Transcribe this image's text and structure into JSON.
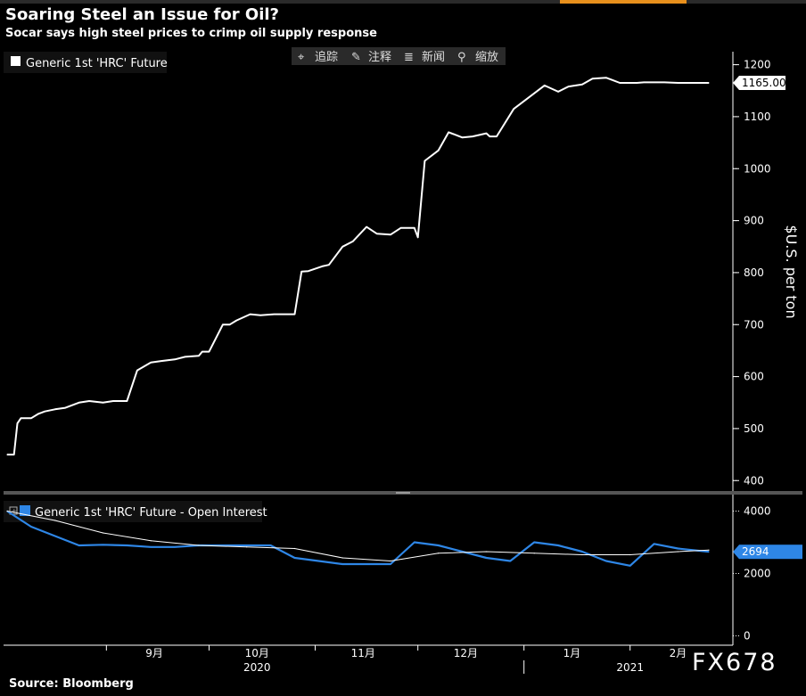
{
  "title": "Soaring Steel an Issue for Oil?",
  "subtitle": "Socar says high steel prices to crimp oil supply response",
  "source": "Source: Bloomberg",
  "watermark": "FX678",
  "toolbar": {
    "items": [
      "追踪",
      "注释",
      "新闻",
      "缩放"
    ],
    "icons": [
      "crosshair-icon",
      "pencil-icon",
      "news-icon",
      "zoom-icon"
    ]
  },
  "colors": {
    "price": "#ffffff",
    "open_interest": "#2e86e6",
    "open_interest_avg": "#ffffff",
    "background": "#000000",
    "divider": "#555555"
  },
  "chart_data": [
    {
      "type": "line",
      "legend": "Generic 1st 'HRC' Future",
      "ylabel": "$U.S. per ton",
      "ylim": [
        385,
        1225
      ],
      "yticks": [
        400,
        500,
        600,
        700,
        800,
        900,
        1000,
        1100,
        1200
      ],
      "last_value_label": "1165.00",
      "x_start": "2020-08-03",
      "x_end": "2021-02-24",
      "series": [
        {
          "name": "Generic 1st 'HRC' Future",
          "x": [
            "2020-08-03",
            "2020-08-05",
            "2020-08-06",
            "2020-08-07",
            "2020-08-10",
            "2020-08-12",
            "2020-08-14",
            "2020-08-17",
            "2020-08-20",
            "2020-08-24",
            "2020-08-27",
            "2020-08-31",
            "2020-09-03",
            "2020-09-07",
            "2020-09-10",
            "2020-09-14",
            "2020-09-17",
            "2020-09-21",
            "2020-09-24",
            "2020-09-28",
            "2020-09-29",
            "2020-10-01",
            "2020-10-05",
            "2020-10-07",
            "2020-10-09",
            "2020-10-13",
            "2020-10-16",
            "2020-10-20",
            "2020-10-23",
            "2020-10-26",
            "2020-10-28",
            "2020-10-30",
            "2020-11-03",
            "2020-11-05",
            "2020-11-09",
            "2020-11-12",
            "2020-11-16",
            "2020-11-19",
            "2020-11-23",
            "2020-11-26",
            "2020-11-30",
            "2020-12-01",
            "2020-12-03",
            "2020-12-07",
            "2020-12-10",
            "2020-12-14",
            "2020-12-17",
            "2020-12-21",
            "2020-12-22",
            "2020-12-24",
            "2020-12-29",
            "2021-01-05",
            "2021-01-07",
            "2021-01-11",
            "2021-01-14",
            "2021-01-18",
            "2021-01-21",
            "2021-01-25",
            "2021-01-27",
            "2021-01-29",
            "2021-02-01",
            "2021-02-03",
            "2021-02-05",
            "2021-02-08",
            "2021-02-11",
            "2021-02-15",
            "2021-02-18",
            "2021-02-22",
            "2021-02-24"
          ],
          "values": [
            450,
            450,
            510,
            520,
            520,
            528,
            533,
            537,
            540,
            550,
            553,
            550,
            553,
            553,
            612,
            627,
            630,
            633,
            638,
            640,
            648,
            648,
            700,
            700,
            708,
            720,
            718,
            720,
            720,
            720,
            802,
            803,
            812,
            815,
            850,
            860,
            888,
            875,
            873,
            886,
            886,
            868,
            1015,
            1035,
            1070,
            1060,
            1062,
            1068,
            1062,
            1062,
            1115,
            1150,
            1160,
            1148,
            1158,
            1162,
            1173,
            1175,
            1170,
            1165,
            1165,
            1165,
            1166,
            1166,
            1166,
            1165,
            1165,
            1165,
            1165
          ]
        }
      ]
    },
    {
      "type": "line",
      "legend": "Generic 1st 'HRC' Future - Open Interest",
      "ylim": [
        -300,
        4500
      ],
      "yticks": [
        0,
        2000,
        4000
      ],
      "last_value_label": "2694",
      "series": [
        {
          "name": "Generic 1st 'HRC' Future - Open Interest",
          "color": "#2e86e6",
          "x": [
            "2020-08-03",
            "2020-08-10",
            "2020-08-17",
            "2020-08-24",
            "2020-08-31",
            "2020-09-07",
            "2020-09-14",
            "2020-09-21",
            "2020-09-28",
            "2020-10-05",
            "2020-10-12",
            "2020-10-19",
            "2020-10-26",
            "2020-11-02",
            "2020-11-09",
            "2020-11-16",
            "2020-11-23",
            "2020-11-30",
            "2020-12-07",
            "2020-12-14",
            "2020-12-21",
            "2020-12-28",
            "2021-01-04",
            "2021-01-11",
            "2021-01-18",
            "2021-01-25",
            "2021-02-01",
            "2021-02-08",
            "2021-02-15",
            "2021-02-24"
          ],
          "values": [
            4000,
            3500,
            3200,
            2900,
            2920,
            2900,
            2850,
            2850,
            2900,
            2900,
            2900,
            2900,
            2500,
            2400,
            2300,
            2300,
            2300,
            3000,
            2900,
            2700,
            2500,
            2400,
            3000,
            2900,
            2700,
            2400,
            2250,
            2950,
            2800,
            2694
          ]
        },
        {
          "name": "average",
          "color": "#ffffff",
          "x": [
            "2020-08-03",
            "2020-08-17",
            "2020-08-31",
            "2020-09-14",
            "2020-09-28",
            "2020-10-12",
            "2020-10-26",
            "2020-11-09",
            "2020-11-23",
            "2020-12-07",
            "2020-12-21",
            "2021-01-04",
            "2021-01-18",
            "2021-02-01",
            "2021-02-15",
            "2021-02-24"
          ],
          "values": [
            4000,
            3700,
            3300,
            3050,
            2900,
            2850,
            2800,
            2500,
            2400,
            2650,
            2700,
            2650,
            2600,
            2600,
            2700,
            2750
          ]
        }
      ]
    }
  ],
  "x_axis": {
    "months": [
      {
        "label": "9月",
        "date": "2020-09-15"
      },
      {
        "label": "10月",
        "date": "2020-10-15"
      },
      {
        "label": "11月",
        "date": "2020-11-15"
      },
      {
        "label": "12月",
        "date": "2020-12-15"
      },
      {
        "label": "1月",
        "date": "2021-01-15"
      },
      {
        "label": "2月",
        "date": "2021-02-15"
      }
    ],
    "month_starts": [
      "2020-09-01",
      "2020-10-01",
      "2020-11-01",
      "2020-12-01",
      "2021-01-01",
      "2021-02-01"
    ],
    "years": [
      {
        "label": "2020",
        "date": "2020-10-15"
      },
      {
        "label": "2021",
        "date": "2021-02-01"
      }
    ],
    "year_divider": "2021-01-01"
  }
}
